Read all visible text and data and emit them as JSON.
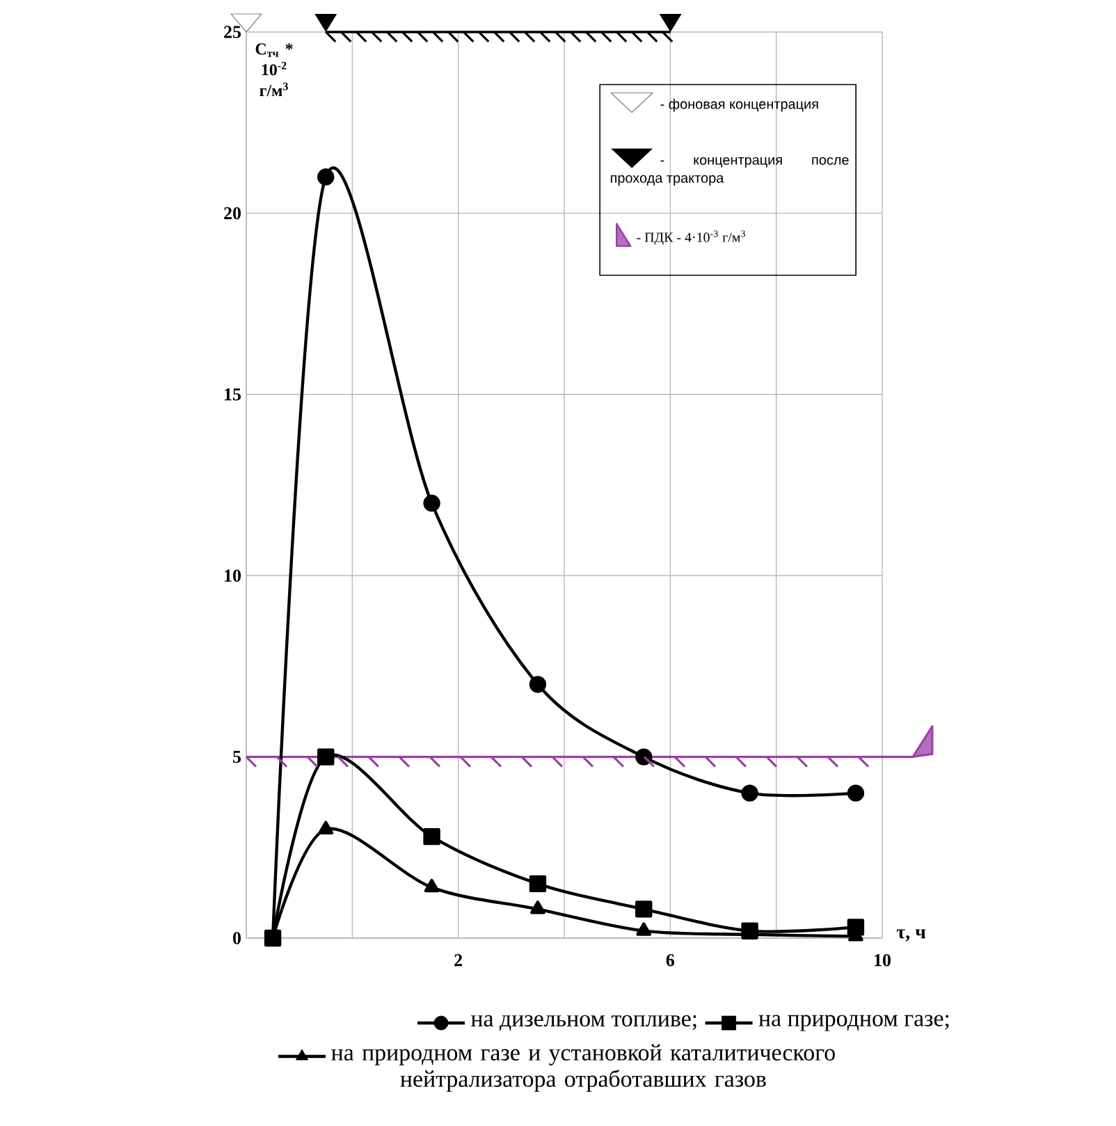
{
  "chart_data": {
    "type": "line",
    "ylabel": "C$_{тч}$ * 10$^{-2}$ г/м$^{3}$",
    "xlabel": "τ, ч",
    "x": [
      -1.5,
      -0.5,
      1.5,
      3.5,
      5.5,
      7.5,
      9.5
    ],
    "series": [
      {
        "name": "на дизельном топливе;",
        "color": "#000000",
        "marker": "circle",
        "values": [
          0,
          21,
          12,
          7,
          5,
          4,
          4
        ]
      },
      {
        "name": "на природном газе;",
        "color": "#000000",
        "marker": "square",
        "values": [
          0,
          5,
          2.8,
          1.5,
          0.8,
          0.2,
          0.3
        ]
      },
      {
        "name": "на природном газе и установкой каталитического нейтрализатора отработавших газов",
        "color": "#000000",
        "marker": "triangle",
        "values": [
          0,
          3,
          1.4,
          0.8,
          0.2,
          0.1,
          0.05
        ]
      }
    ],
    "xlim": [
      -2,
      10
    ],
    "xticks": [
      {
        "value": -2,
        "label": null
      },
      {
        "value": 0,
        "label": null
      },
      2,
      {
        "value": 4,
        "label": null
      },
      6,
      {
        "value": 8,
        "label": null
      },
      10
    ],
    "ylim": [
      0,
      25
    ],
    "yticks": [
      0,
      5,
      10,
      15,
      20,
      25
    ],
    "grid": true,
    "legend": "bottom",
    "ref_lines": [
      {
        "axis": "y",
        "value": 5,
        "label": "- ПДК - 4·10$^{-3}$ г/м$^{3}$",
        "color": "#9b3fa8"
      }
    ],
    "annotations": [
      "- фоновая концентрация",
      "- концентрация после прохода трактора"
    ]
  }
}
